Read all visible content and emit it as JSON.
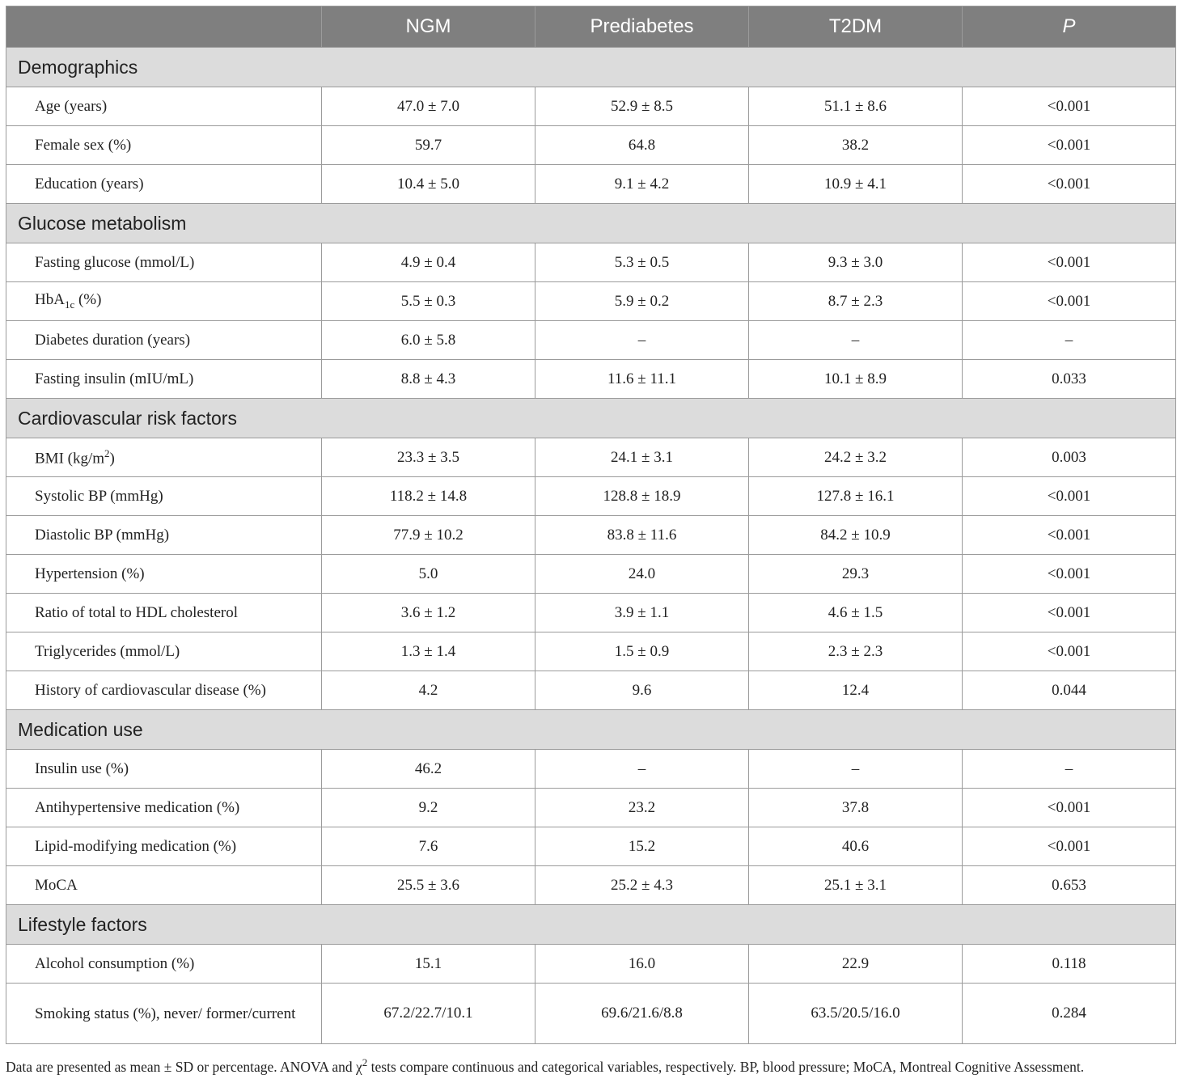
{
  "columns": [
    "",
    "NGM",
    "Prediabetes",
    "T2DM",
    "P"
  ],
  "sections": [
    {
      "title": "Demographics",
      "rows": [
        {
          "label": "Age (years)",
          "values": [
            "47.0 ± 7.0",
            "52.9 ± 8.5",
            "51.1 ± 8.6",
            "<0.001"
          ]
        },
        {
          "label": "Female sex (%)",
          "values": [
            "59.7",
            "64.8",
            "38.2",
            "<0.001"
          ]
        },
        {
          "label": "Education (years)",
          "values": [
            "10.4 ± 5.0",
            "9.1 ± 4.2",
            "10.9 ± 4.1",
            "<0.001"
          ]
        }
      ]
    },
    {
      "title": "Glucose metabolism",
      "rows": [
        {
          "label": "Fasting glucose (mmol/L)",
          "values": [
            "4.9 ± 0.4",
            "5.3 ± 0.5",
            "9.3 ± 3.0",
            "<0.001"
          ]
        },
        {
          "label": "HbA",
          "label_sub": "1c",
          "label_after": " (%)",
          "values": [
            "5.5 ± 0.3",
            "5.9 ± 0.2",
            "8.7 ± 2.3",
            "<0.001"
          ]
        },
        {
          "label": "Diabetes duration (years)",
          "values": [
            "6.0 ± 5.8",
            "–",
            "–",
            "–"
          ]
        },
        {
          "label": "Fasting insulin (mIU/mL)",
          "values": [
            "8.8 ± 4.3",
            "11.6 ± 11.1",
            "10.1 ± 8.9",
            "0.033"
          ]
        }
      ]
    },
    {
      "title": "Cardiovascular risk factors",
      "rows": [
        {
          "label": "BMI (kg/m",
          "label_sup": "2",
          "label_after": ")",
          "values": [
            "23.3 ± 3.5",
            "24.1 ± 3.1",
            "24.2 ± 3.2",
            "0.003"
          ]
        },
        {
          "label": "Systolic BP (mmHg)",
          "values": [
            "118.2 ± 14.8",
            "128.8 ± 18.9",
            "127.8 ± 16.1",
            "<0.001"
          ]
        },
        {
          "label": "Diastolic BP (mmHg)",
          "values": [
            "77.9 ± 10.2",
            "83.8 ± 11.6",
            "84.2 ± 10.9",
            "<0.001"
          ]
        },
        {
          "label": "Hypertension (%)",
          "values": [
            "5.0",
            "24.0",
            "29.3",
            "<0.001"
          ]
        },
        {
          "label": "Ratio of total to HDL cholesterol",
          "values": [
            "3.6 ± 1.2",
            "3.9 ± 1.1",
            "4.6 ± 1.5",
            "<0.001"
          ]
        },
        {
          "label": "Triglycerides (mmol/L)",
          "values": [
            "1.3 ± 1.4",
            "1.5 ± 0.9",
            "2.3 ± 2.3",
            "<0.001"
          ]
        },
        {
          "label": "History of cardiovascular disease (%)",
          "values": [
            "4.2",
            "9.6",
            "12.4",
            "0.044"
          ]
        }
      ]
    },
    {
      "title": "Medication use",
      "rows": [
        {
          "label": "Insulin use (%)",
          "values": [
            "46.2",
            "–",
            "–",
            "–"
          ]
        },
        {
          "label": "Antihypertensive medication (%)",
          "values": [
            "9.2",
            "23.2",
            "37.8",
            "<0.001"
          ]
        },
        {
          "label": "Lipid-modifying medication (%)",
          "values": [
            "7.6",
            "15.2",
            "40.6",
            "<0.001"
          ]
        },
        {
          "label": "MoCA",
          "values": [
            "25.5 ± 3.6",
            "25.2 ± 4.3",
            "25.1 ± 3.1",
            "0.653"
          ]
        }
      ]
    },
    {
      "title": "Lifestyle factors",
      "rows": [
        {
          "label": "Alcohol consumption (%)",
          "values": [
            "15.1",
            "16.0",
            "22.9",
            "0.118"
          ]
        },
        {
          "label": "Smoking status (%), never/ former/current",
          "values": [
            "67.2/22.7/10.1",
            "69.6/21.6/8.8",
            "63.5/20.5/16.0",
            "0.284"
          ],
          "tall": true
        }
      ]
    }
  ],
  "footnote": {
    "before": "Data are presented as mean ± SD or percentage. ANOVA and χ",
    "sup": "2",
    "after": " tests compare continuous and categorical variables, respectively. BP, blood pressure; MoCA, Montreal Cognitive Assessment."
  }
}
